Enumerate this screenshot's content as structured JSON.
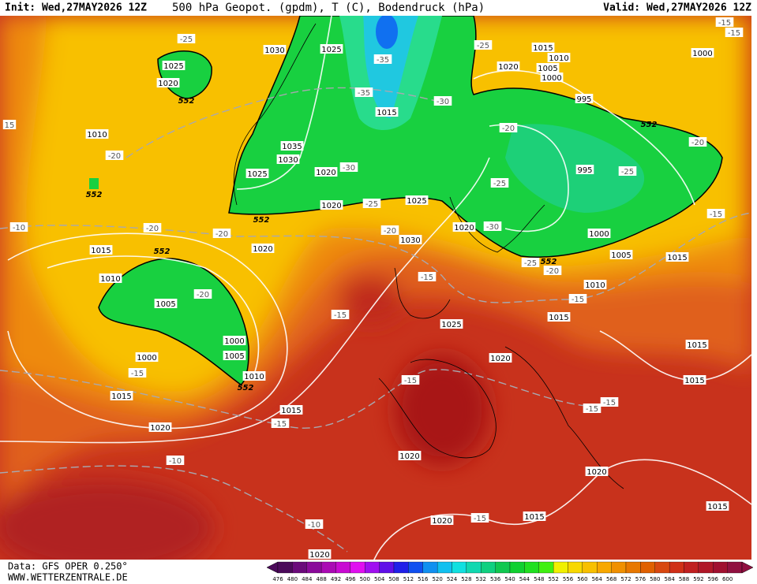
{
  "header": {
    "init": "Init: Wed,27MAY2026 12Z",
    "title": "500 hPa Geopot. (gpdm), T (C), Bodendruck (hPa)",
    "valid": "Valid: Wed,27MAY2026 12Z"
  },
  "footer": {
    "data": "Data: GFS OPER 0.250°",
    "site": "WWW.WETTERZENTRALE.DE"
  },
  "map": {
    "pressure_labels": [
      "1030",
      "1025",
      "1025",
      "1020",
      "1010",
      "1035",
      "1030",
      "1025",
      "1020",
      "1015",
      "1020",
      "1025",
      "1030",
      "1020",
      "1015",
      "1010",
      "1005",
      "1000",
      "1005",
      "1010",
      "1000",
      "1015",
      "1015",
      "1020",
      "1025",
      "1020",
      "1020",
      "1015",
      "1010",
      "1020",
      "1005",
      "1000",
      "1000",
      "995",
      "995",
      "1000",
      "1005",
      "1015",
      "1010",
      "1015",
      "1015",
      "1015",
      "1020",
      "1020",
      "1020",
      "1015",
      "1015",
      "1020"
    ],
    "temperature_labels": [
      "-25",
      "-35",
      "-35",
      "-30",
      "-25",
      "-20",
      "-20",
      "-20",
      "-20",
      "-30",
      "-25",
      "-20",
      "-30",
      "-25",
      "-25",
      "-20",
      "-15",
      "-15",
      "-15",
      "-15",
      "-15",
      "-10",
      "-10",
      "-10",
      "-15",
      "-15",
      "-15",
      "-15",
      "-15",
      "-20",
      "-25",
      "-20",
      "-15",
      "-15",
      "15"
    ],
    "contour_labels": [
      "552",
      "552",
      "552",
      "552",
      "552",
      "552",
      "552"
    ]
  },
  "colorbar": {
    "levels": [
      476,
      480,
      484,
      488,
      492,
      496,
      500,
      504,
      508,
      512,
      516,
      520,
      524,
      528,
      532,
      536,
      540,
      544,
      548,
      552,
      556,
      560,
      564,
      568,
      572,
      576,
      580,
      584,
      588,
      592,
      596,
      600
    ],
    "colors": [
      "#4b0a5a",
      "#6a0a7a",
      "#8a0a9a",
      "#aa0ab4",
      "#c80ad2",
      "#e010f0",
      "#a010f0",
      "#6010e8",
      "#2020e8",
      "#1050f0",
      "#1090f0",
      "#10c0f0",
      "#10e0e0",
      "#10d8b0",
      "#10d080",
      "#10c850",
      "#10d030",
      "#20e020",
      "#40f010",
      "#f0f000",
      "#f8d800",
      "#f8c000",
      "#f8a800",
      "#f09000",
      "#e87800",
      "#e06000",
      "#d84810",
      "#d03018",
      "#c02020",
      "#b01828",
      "#a01030",
      "#901040"
    ]
  }
}
